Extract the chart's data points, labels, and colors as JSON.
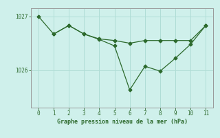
{
  "line1_x": [
    0,
    1,
    2,
    3,
    4,
    5,
    6,
    7,
    8,
    9,
    10,
    11
  ],
  "line1_y": [
    1027.0,
    1026.67,
    1026.83,
    1026.67,
    1026.58,
    1026.55,
    1026.5,
    1026.55,
    1026.55,
    1026.55,
    1026.55,
    1026.83
  ],
  "line2_x": [
    1,
    2,
    3,
    4,
    5,
    6,
    7,
    8,
    9,
    10,
    11
  ],
  "line2_y": [
    1026.67,
    1026.83,
    1026.67,
    1026.57,
    1026.45,
    1025.63,
    1026.07,
    1025.98,
    1026.22,
    1026.48,
    1026.83
  ],
  "line_color": "#2d6a2d",
  "bg_color": "#cff0eb",
  "grid_color": "#b0ddd6",
  "xlabel": "Graphe pression niveau de la mer (hPa)",
  "yticks": [
    1026,
    1027
  ],
  "xlim": [
    -0.5,
    11.5
  ],
  "ylim": [
    1025.3,
    1027.15
  ],
  "figsize": [
    3.2,
    2.0
  ],
  "dpi": 100
}
